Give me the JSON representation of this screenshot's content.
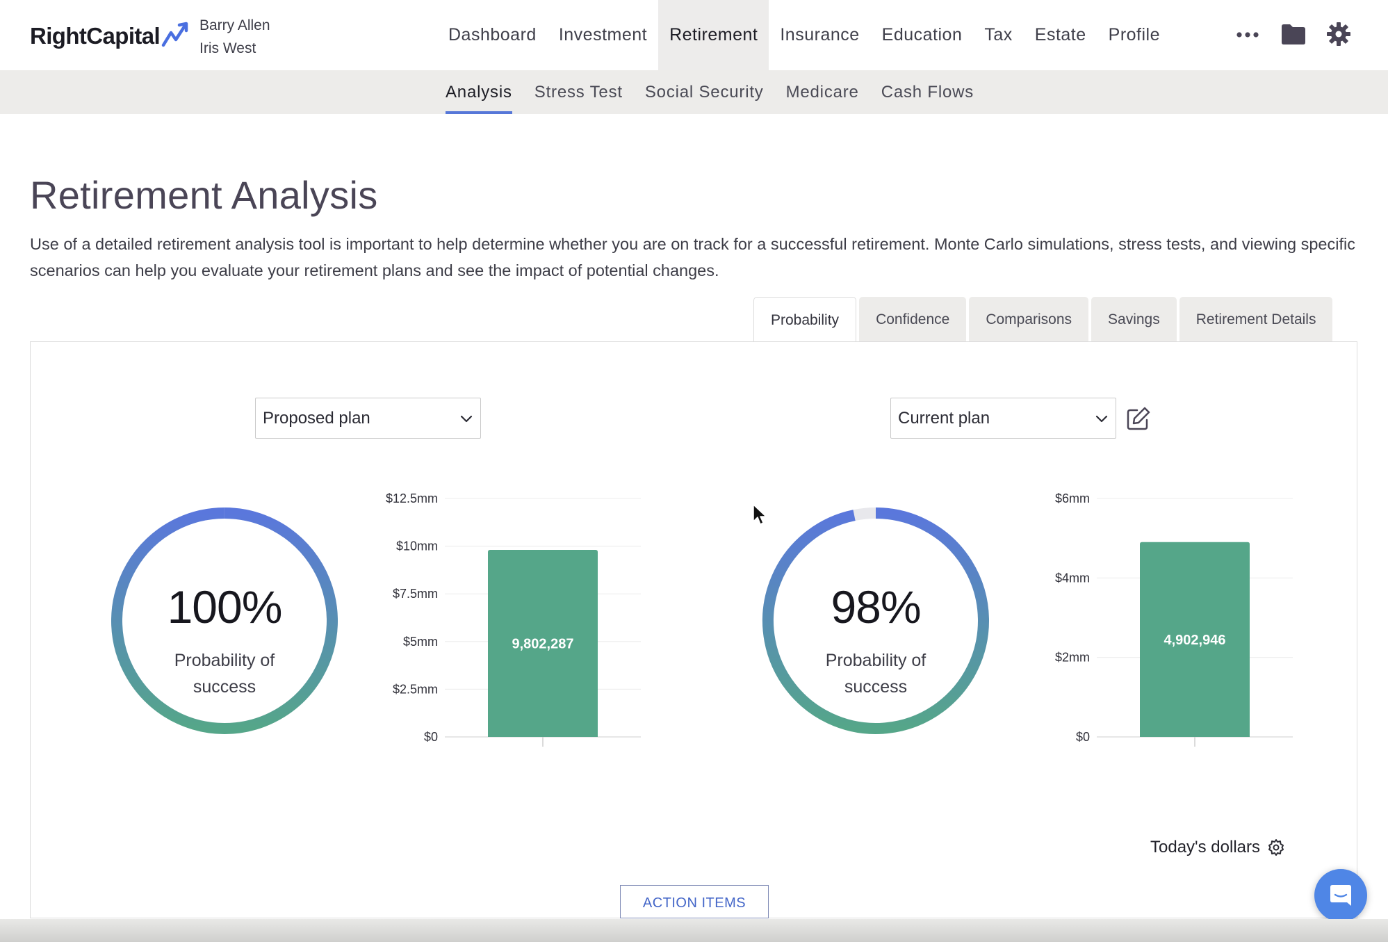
{
  "app": {
    "logo_text": "RightCapital"
  },
  "header": {
    "clients": [
      "Barry Allen",
      "Iris West"
    ],
    "nav": [
      "Dashboard",
      "Investment",
      "Retirement",
      "Insurance",
      "Education",
      "Tax",
      "Estate",
      "Profile"
    ],
    "active_nav": "Retirement",
    "icons": [
      "more-horizontal-icon",
      "folder-icon",
      "gear-icon"
    ]
  },
  "subnav": {
    "items": [
      "Analysis",
      "Stress Test",
      "Social Security",
      "Medicare",
      "Cash Flows"
    ],
    "active": "Analysis"
  },
  "page": {
    "title": "Retirement Analysis",
    "description": "Use of a detailed retirement analysis tool is important to help determine whether you are on track for a successful retirement. Monte Carlo simulations, stress tests, and viewing specific scenarios can help you evaluate your retirement plans and see the impact of potential changes."
  },
  "tabs": {
    "items": [
      "Probability",
      "Confidence",
      "Comparisons",
      "Savings",
      "Retirement Details"
    ],
    "active": "Probability"
  },
  "plans": {
    "left": {
      "select_value": "Proposed plan",
      "percent_text": "100%",
      "caption": "Probability of success"
    },
    "right": {
      "select_value": "Current plan",
      "percent_text": "98%",
      "caption": "Probability of success"
    }
  },
  "chart_data": [
    {
      "type": "gauge",
      "value": 100,
      "max": 100,
      "label": "Probability of success"
    },
    {
      "type": "bar",
      "categories": [
        ""
      ],
      "values": [
        9802287
      ],
      "value_labels": [
        "9,802,287"
      ],
      "ylim": [
        0,
        12500000
      ],
      "yticks": [
        0,
        2500000,
        5000000,
        7500000,
        10000000,
        12500000
      ],
      "ytick_labels": [
        "$0",
        "$2.5mm",
        "$5mm",
        "$7.5mm",
        "$10mm",
        "$12.5mm"
      ],
      "grid": true,
      "color": "#55a689"
    },
    {
      "type": "gauge",
      "value": 98,
      "max": 100,
      "label": "Probability of success"
    },
    {
      "type": "bar",
      "categories": [
        ""
      ],
      "values": [
        4902946
      ],
      "value_labels": [
        "4,902,946"
      ],
      "ylim": [
        0,
        6000000
      ],
      "yticks": [
        0,
        2000000,
        4000000,
        6000000
      ],
      "ytick_labels": [
        "$0",
        "$2mm",
        "$4mm",
        "$6mm"
      ],
      "grid": true,
      "color": "#55a689"
    }
  ],
  "footer": {
    "dollars_label": "Today's dollars",
    "action_button": "ACTION ITEMS"
  },
  "colors": {
    "accent": "#5677d8",
    "gauge_start": "#5a77dc",
    "gauge_end": "#55a689",
    "bar": "#55a689",
    "chat": "#4f86e6"
  }
}
